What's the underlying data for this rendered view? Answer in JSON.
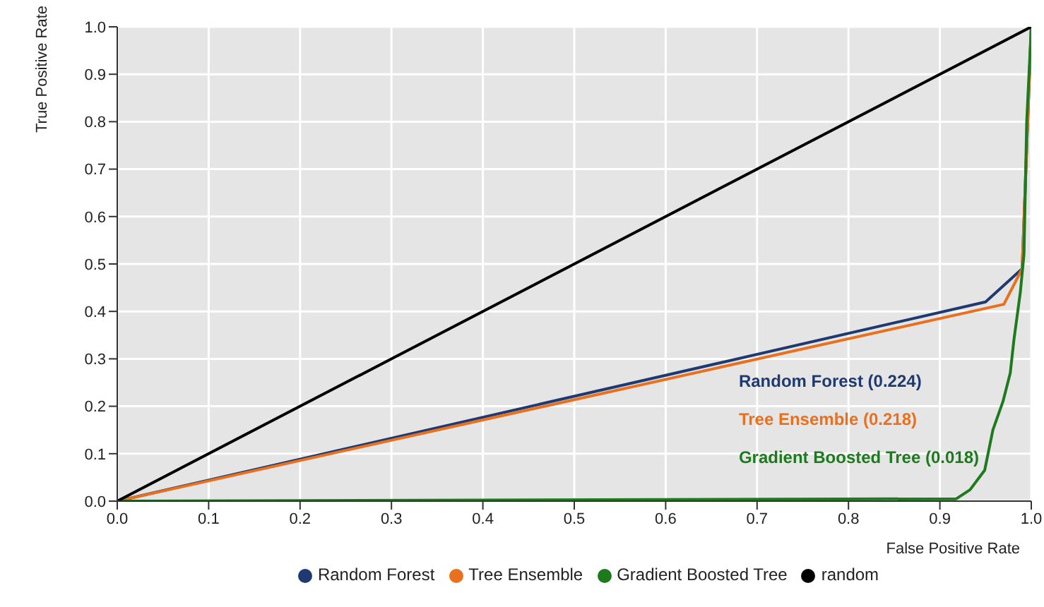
{
  "chart_data": {
    "type": "line",
    "xlabel": "False Positive Rate",
    "ylabel": "True Positive Rate",
    "series": [
      {
        "name": "Random Forest",
        "color": "#1f3a70",
        "x": [
          0,
          0.95,
          0.99,
          1
        ],
        "values": [
          0,
          0.42,
          0.49,
          1
        ]
      },
      {
        "name": "Tree Ensemble",
        "color": "#e8701e",
        "x": [
          0,
          0.97,
          0.99,
          1
        ],
        "values": [
          0,
          0.415,
          0.49,
          1
        ]
      },
      {
        "name": "Gradient Boosted Tree",
        "color": "#1d7a1d",
        "x": [
          0,
          0.918,
          0.933,
          0.949,
          0.958,
          0.969,
          0.977,
          0.981,
          0.988,
          0.992,
          0.995,
          1
        ],
        "values": [
          0,
          0.005,
          0.024,
          0.065,
          0.15,
          0.21,
          0.27,
          0.34,
          0.44,
          0.52,
          0.8,
          1
        ]
      },
      {
        "name": "random",
        "color": "#000000",
        "x": [
          0,
          1
        ],
        "values": [
          0,
          1
        ]
      }
    ],
    "annotations": [
      "Random Forest (0.224)",
      "Tree Ensemble (0.218)",
      "Gradient Boosted Tree (0.018)"
    ],
    "xlim": [
      0,
      1
    ],
    "ylim": [
      0,
      1
    ],
    "xticks": [
      {
        "value": 0,
        "label": "0.0"
      },
      0.1,
      0.2,
      0.3,
      0.4,
      0.5,
      0.6,
      0.7,
      0.8,
      0.9,
      {
        "value": 1,
        "label": "1.0"
      }
    ],
    "yticks": [
      {
        "value": 0,
        "label": "0.0"
      },
      0.1,
      0.2,
      0.3,
      0.4,
      0.5,
      0.6,
      0.7,
      0.8,
      0.9,
      {
        "value": 1,
        "label": "1.0"
      }
    ],
    "grid": true,
    "legend": "bottom",
    "marker": "none",
    "line_style": "solid"
  }
}
